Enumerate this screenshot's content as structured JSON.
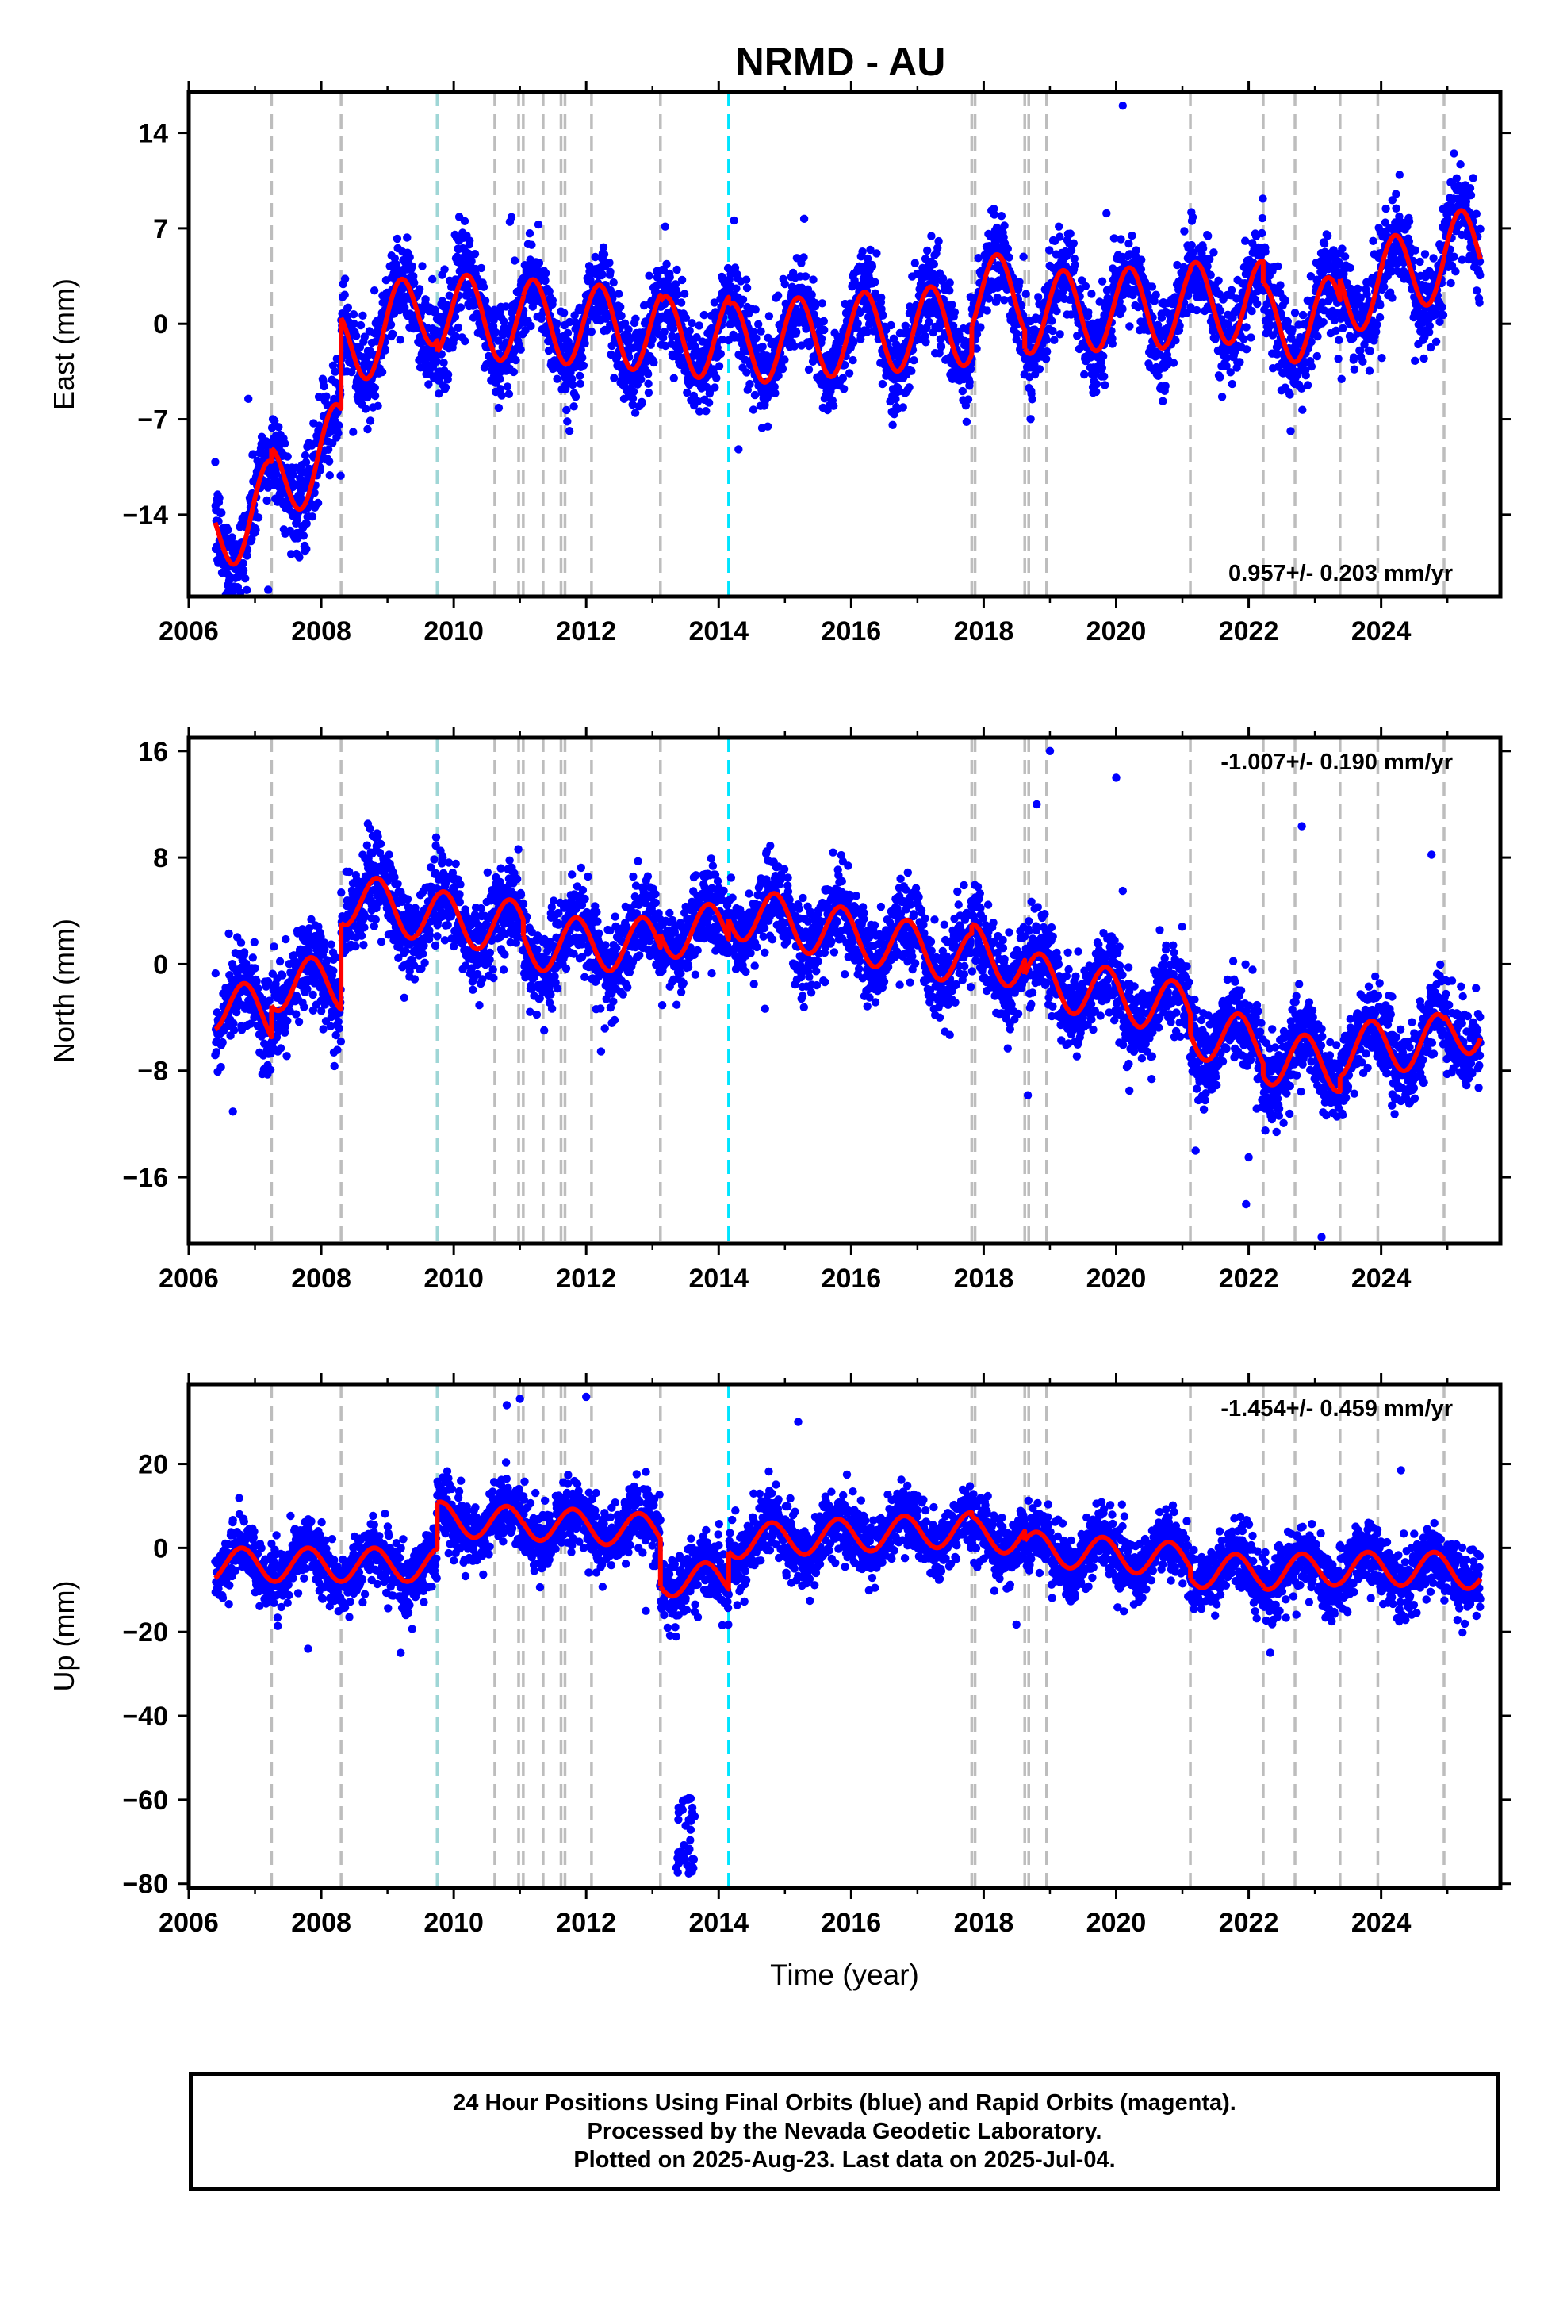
{
  "title": "NRMD - AU",
  "colors": {
    "points": "#0000ff",
    "model": "#ff0000",
    "event_gray": "#bdbdbd",
    "event_cyan": "#00e5ff",
    "event_teal": "#9fd6d6"
  },
  "events": [
    {
      "year": 2007.25,
      "type": "gray"
    },
    {
      "year": 2008.3,
      "type": "gray"
    },
    {
      "year": 2009.75,
      "type": "teal"
    },
    {
      "year": 2010.62,
      "type": "gray"
    },
    {
      "year": 2010.98,
      "type": "gray"
    },
    {
      "year": 2011.05,
      "type": "gray"
    },
    {
      "year": 2011.35,
      "type": "gray"
    },
    {
      "year": 2011.62,
      "type": "gray"
    },
    {
      "year": 2011.68,
      "type": "gray"
    },
    {
      "year": 2012.08,
      "type": "gray"
    },
    {
      "year": 2013.12,
      "type": "gray"
    },
    {
      "year": 2014.15,
      "type": "cyan"
    },
    {
      "year": 2017.82,
      "type": "gray"
    },
    {
      "year": 2017.87,
      "type": "gray"
    },
    {
      "year": 2018.62,
      "type": "gray"
    },
    {
      "year": 2018.68,
      "type": "gray"
    },
    {
      "year": 2018.95,
      "type": "gray"
    },
    {
      "year": 2021.12,
      "type": "gray"
    },
    {
      "year": 2022.22,
      "type": "gray"
    },
    {
      "year": 2022.7,
      "type": "gray"
    },
    {
      "year": 2023.38,
      "type": "gray"
    },
    {
      "year": 2023.95,
      "type": "gray"
    },
    {
      "year": 2024.95,
      "type": "gray"
    }
  ],
  "chart_data": [
    {
      "type": "scatter",
      "component": "east",
      "ylabel": "East (mm)",
      "xlabel": "",
      "xlim": [
        2006,
        2025.8
      ],
      "ylim": [
        -20,
        17
      ],
      "xticks": [
        2006,
        2008,
        2010,
        2012,
        2014,
        2016,
        2018,
        2020,
        2022,
        2024
      ],
      "yticks": [
        14,
        7,
        0,
        -7,
        -14
      ],
      "velocity_label": "0.957+/- 0.203 mm/yr",
      "velocity_label_position": "bottom-right",
      "model": {
        "start": 2006.4,
        "end": 2025.5,
        "annual_amplitude": 3.0,
        "annual_phase": 0.95,
        "segments": [
          {
            "start": 2006.4,
            "offset": -15.5,
            "slope": 3.0
          },
          {
            "start": 2007.25,
            "offset": -12.0,
            "slope": 3.2
          },
          {
            "start": 2008.3,
            "offset": -2.0,
            "slope": 2.5
          },
          {
            "start": 2009.75,
            "offset": 0.8,
            "slope": -0.5
          },
          {
            "start": 2011.05,
            "offset": 0.3,
            "slope": -0.4
          },
          {
            "start": 2013.12,
            "offset": -1.0,
            "slope": 0.1
          },
          {
            "start": 2014.15,
            "offset": -1.5,
            "slope": 0.4
          },
          {
            "start": 2017.82,
            "offset": 2.0,
            "slope": 0.2
          },
          {
            "start": 2018.62,
            "offset": 0.8,
            "slope": 0.2
          },
          {
            "start": 2021.12,
            "offset": 1.5,
            "slope": 0.1
          },
          {
            "start": 2022.22,
            "offset": 0.0,
            "slope": 0.4
          },
          {
            "start": 2023.38,
            "offset": 2.0,
            "slope": 1.8
          },
          {
            "start": 2024.95,
            "offset": 5.0,
            "slope": 1.2
          }
        ]
      },
      "scatter": {
        "noise": 1.6,
        "outlier_fraction": 0.004,
        "outlier_scale": 4
      },
      "outliers": [
        [
          2020.1,
          16.0
        ],
        [
          2025.1,
          12.5
        ],
        [
          2006.9,
          -5.5
        ],
        [
          2014.3,
          -9.2
        ],
        [
          2007.2,
          -19.5
        ]
      ]
    },
    {
      "type": "scatter",
      "component": "north",
      "ylabel": "North (mm)",
      "xlabel": "",
      "xlim": [
        2006,
        2025.8
      ],
      "ylim": [
        -21,
        17
      ],
      "xticks": [
        2006,
        2008,
        2010,
        2012,
        2014,
        2016,
        2018,
        2020,
        2022,
        2024
      ],
      "yticks": [
        16,
        8,
        0,
        -8,
        -16
      ],
      "velocity_label": "-1.007+/- 0.190 mm/yr",
      "velocity_label_position": "top-right",
      "model": {
        "start": 2006.4,
        "end": 2025.5,
        "annual_amplitude": 2.0,
        "annual_phase": 0.6,
        "segments": [
          {
            "start": 2006.4,
            "offset": -3.0,
            "slope": -1.0
          },
          {
            "start": 2007.25,
            "offset": -1.5,
            "slope": 0.0
          },
          {
            "start": 2008.3,
            "offset": 5.0,
            "slope": -1.0
          },
          {
            "start": 2009.75,
            "offset": 3.5,
            "slope": -0.6
          },
          {
            "start": 2011.05,
            "offset": 1.5,
            "slope": 0.0
          },
          {
            "start": 2013.12,
            "offset": 2.5,
            "slope": 0.0
          },
          {
            "start": 2014.15,
            "offset": 4.0,
            "slope": -1.0
          },
          {
            "start": 2017.82,
            "offset": 1.0,
            "slope": -1.2
          },
          {
            "start": 2018.62,
            "offset": -1.0,
            "slope": -1.0
          },
          {
            "start": 2021.12,
            "offset": -5.0,
            "slope": -1.0
          },
          {
            "start": 2022.22,
            "offset": -7.0,
            "slope": -0.5
          },
          {
            "start": 2023.38,
            "offset": -6.5,
            "slope": 0.5
          },
          {
            "start": 2024.95,
            "offset": -5.5,
            "slope": 2.0
          }
        ]
      },
      "scatter": {
        "noise": 1.6,
        "outlier_fraction": 0.004,
        "outlier_scale": 4
      },
      "outliers": [
        [
          2019.0,
          16.0
        ],
        [
          2020.0,
          14.0
        ],
        [
          2018.8,
          12.0
        ],
        [
          2020.1,
          5.5
        ],
        [
          2023.1,
          -20.5
        ],
        [
          2021.2,
          -14.0
        ],
        [
          2022.0,
          -14.5
        ],
        [
          2020.2,
          -9.5
        ]
      ]
    },
    {
      "type": "scatter",
      "component": "up",
      "ylabel": "Up (mm)",
      "xlabel": "Time (year)",
      "xlim": [
        2006,
        2025.8
      ],
      "ylim": [
        -81,
        39
      ],
      "xticks": [
        2006,
        2008,
        2010,
        2012,
        2014,
        2016,
        2018,
        2020,
        2022,
        2024
      ],
      "yticks": [
        20,
        0,
        -20,
        -40,
        -60,
        -80
      ],
      "velocity_label": "-1.454+/- 0.459 mm/yr",
      "velocity_label_position": "top-right",
      "model": {
        "start": 2006.4,
        "end": 2025.5,
        "annual_amplitude": 4.0,
        "annual_phase": 0.55,
        "segments": [
          {
            "start": 2006.4,
            "offset": -4.0,
            "slope": 0.0
          },
          {
            "start": 2009.75,
            "offset": 7.0,
            "slope": -1.0
          },
          {
            "start": 2011.05,
            "offset": 6.0,
            "slope": -1.0
          },
          {
            "start": 2013.12,
            "offset": -7.5,
            "slope": 0.0
          },
          {
            "start": 2014.15,
            "offset": 1.5,
            "slope": 0.8
          },
          {
            "start": 2017.82,
            "offset": 3.5,
            "slope": -1.5
          },
          {
            "start": 2018.62,
            "offset": 0.0,
            "slope": -1.2
          },
          {
            "start": 2021.12,
            "offset": -5.5,
            "slope": 0.0
          },
          {
            "start": 2022.22,
            "offset": -6.0,
            "slope": 1.0
          },
          {
            "start": 2023.38,
            "offset": -5.0,
            "slope": 0.0
          },
          {
            "start": 2024.95,
            "offset": -5.0,
            "slope": -2.0
          }
        ]
      },
      "scatter": {
        "noise": 3.8,
        "outlier_fraction": 0.005,
        "outlier_scale": 3.5
      },
      "outliers": [
        [
          2011.0,
          35.5
        ],
        [
          2012.0,
          36.0
        ],
        [
          2015.2,
          30.0
        ],
        [
          2024.3,
          18.5
        ],
        [
          2012.9,
          -15.0
        ],
        [
          2007.8,
          -24.0
        ],
        [
          2009.2,
          -25.0
        ],
        [
          2010.8,
          34.0
        ]
      ],
      "cluster": {
        "x_start": 2013.35,
        "x_end": 2013.65,
        "y_min": -78,
        "y_max": -59,
        "count": 45
      }
    }
  ],
  "footer": {
    "line1": "24 Hour Positions Using Final Orbits (blue) and Rapid Orbits (magenta).",
    "line2": "Processed by the Nevada Geodetic Laboratory.",
    "line3": "Plotted on 2025-Aug-23. Last data on 2025-Jul-04."
  }
}
